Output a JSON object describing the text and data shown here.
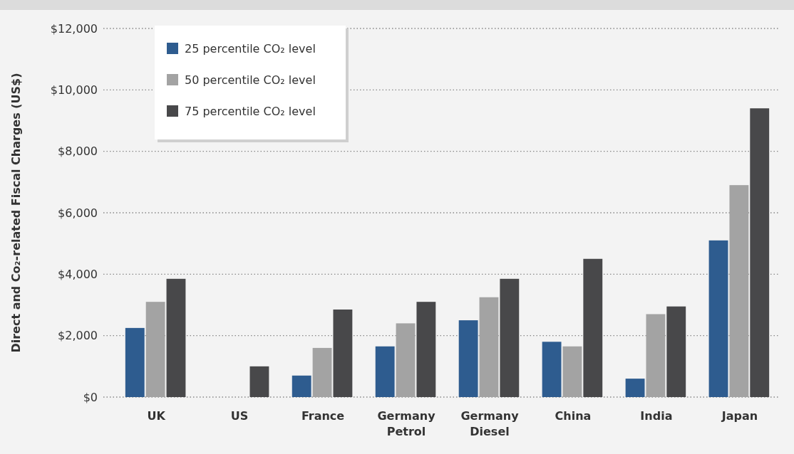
{
  "chart_data": {
    "type": "bar",
    "ylabel": "Direct and Co₂-related Fiscal Charges (US$)",
    "categories": [
      "UK",
      "US",
      "France",
      "Germany Petrol",
      "Germany Diesel",
      "China",
      "India",
      "Japan"
    ],
    "series": [
      {
        "name": "25 percentile CO₂ level",
        "color": "#2e5c8f",
        "values": [
          2250,
          null,
          700,
          1650,
          2500,
          1800,
          600,
          5100
        ]
      },
      {
        "name": "50 percentile CO₂ level",
        "color": "#a3a3a3",
        "values": [
          3100,
          null,
          1600,
          2400,
          3250,
          1650,
          2700,
          6900
        ]
      },
      {
        "name": "75 percentile CO₂ level",
        "color": "#48484a",
        "values": [
          3850,
          1000,
          2850,
          3100,
          3850,
          4500,
          2950,
          9400
        ]
      }
    ],
    "ylim": [
      0,
      12000
    ],
    "yticks": [
      {
        "value": 0,
        "label": "$0"
      },
      {
        "value": 2000,
        "label": "$2,000"
      },
      {
        "value": 4000,
        "label": "$4,000"
      },
      {
        "value": 6000,
        "label": "$6,000"
      },
      {
        "value": 8000,
        "label": "$8,000"
      },
      {
        "value": 10000,
        "label": "$10,000"
      },
      {
        "value": 12000,
        "label": "$12,000"
      }
    ],
    "grid": "y",
    "legend": "top left"
  }
}
